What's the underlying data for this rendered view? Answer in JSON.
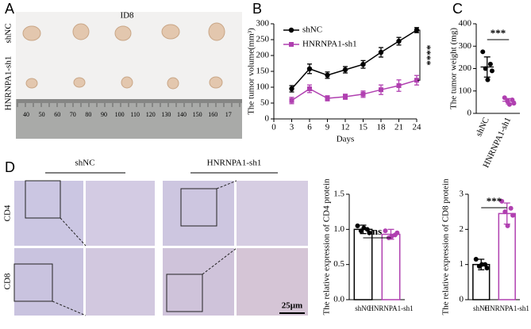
{
  "figure": {
    "panel_labels": [
      "A",
      "B",
      "C",
      "D"
    ],
    "panel_a": {
      "title": "ID8",
      "rows": [
        "shNC",
        "HNRNPA1-sh1"
      ],
      "ruler": [
        "40",
        "50",
        "60",
        "70",
        "80",
        "90",
        "100",
        "110",
        "120",
        "130",
        "140",
        "150",
        "160",
        "17"
      ]
    },
    "panel_d": {
      "columns": [
        "shNC",
        "HNRNPA1-sh1"
      ],
      "rows": [
        "CD4",
        "CD8"
      ],
      "scale_bar": "25μm"
    }
  },
  "chart_data": [
    {
      "type": "line",
      "x_label": "Days",
      "y_label": "The tumor volume(mm³)",
      "x": [
        3,
        6,
        9,
        12,
        15,
        18,
        21,
        24
      ],
      "xlim": [
        0,
        24
      ],
      "xticks": [
        0,
        3,
        6,
        9,
        12,
        15,
        18,
        21,
        24
      ],
      "ylim": [
        0,
        300
      ],
      "yticks": [
        0,
        50,
        100,
        150,
        200,
        250,
        300
      ],
      "annotation": "****",
      "series": [
        {
          "name": "shNC",
          "color": "#000000",
          "marker": "circle",
          "values": [
            95,
            158,
            138,
            155,
            172,
            210,
            245,
            280
          ],
          "errors": [
            10,
            15,
            10,
            10,
            12,
            15,
            12,
            8
          ]
        },
        {
          "name": "HNRNPA1-sh1",
          "color": "#b040b0",
          "marker": "square",
          "values": [
            58,
            95,
            65,
            70,
            78,
            92,
            105,
            122
          ],
          "errors": [
            10,
            12,
            8,
            8,
            10,
            15,
            18,
            15
          ]
        }
      ]
    },
    {
      "type": "dot",
      "y_label": "The tumor weight (mg)",
      "categories": [
        "shNC",
        "HNRNPA1-sh1"
      ],
      "values": [
        207,
        54
      ],
      "errors": [
        45,
        12
      ],
      "points": [
        [
          275,
          220,
          200,
          190,
          150
        ],
        [
          70,
          60,
          55,
          45,
          40
        ]
      ],
      "colors": [
        "#000000",
        "#b040b0"
      ],
      "ylim": [
        0,
        400
      ],
      "yticks": [
        0,
        100,
        200,
        300,
        400
      ],
      "annotation": "***"
    },
    {
      "type": "bar",
      "y_label": "The relative expression of CD4 protein",
      "categories": [
        "shNC",
        "HNRNPA1-sh1"
      ],
      "values": [
        1.0,
        0.93
      ],
      "errors": [
        0.06,
        0.07
      ],
      "points": [
        [
          1.05,
          1.0,
          0.98,
          0.95,
          1.02
        ],
        [
          0.98,
          0.92,
          0.88,
          0.95,
          0.9
        ]
      ],
      "colors": [
        "#000000",
        "#b040b0"
      ],
      "ylim": [
        0,
        1.5
      ],
      "yticks": [
        {
          "value": 0,
          "label": "0.0"
        },
        {
          "value": 0.5,
          "label": "0.5"
        },
        {
          "value": 1,
          "label": "1.0"
        },
        {
          "value": 1.5,
          "label": "1.5"
        }
      ],
      "annotation": "ns"
    },
    {
      "type": "bar",
      "y_label": "The relative expression of CD8 protein",
      "categories": [
        "shNC",
        "HNRNPA1-sh1"
      ],
      "values": [
        1.0,
        2.45
      ],
      "errors": [
        0.15,
        0.3
      ],
      "points": [
        [
          1.15,
          1.0,
          0.95,
          0.9,
          1.0
        ],
        [
          2.8,
          2.6,
          2.5,
          2.4,
          2.1
        ]
      ],
      "colors": [
        "#000000",
        "#b040b0"
      ],
      "ylim": [
        0,
        3
      ],
      "yticks": [
        0,
        1,
        2,
        3
      ],
      "annotation": "***"
    }
  ]
}
